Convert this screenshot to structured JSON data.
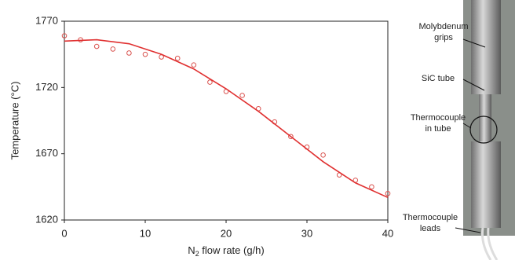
{
  "chart_data": {
    "type": "scatter",
    "xlabel": {
      "main": "N",
      "sub": "2",
      "rest": " flow rate (g/h)"
    },
    "ylabel": "Temperature (°C)",
    "xlim": [
      0,
      40
    ],
    "xticks": [
      0,
      10,
      20,
      30,
      40
    ],
    "ylim": [
      1620,
      1770
    ],
    "yticks": [
      1620,
      1670,
      1720,
      1770
    ],
    "series": [
      {
        "style": "markers",
        "color": "#d9534f",
        "x": [
          0,
          2,
          4,
          6,
          8,
          10,
          12,
          14,
          16,
          18,
          20,
          22,
          24,
          26,
          28,
          30,
          32,
          34,
          36,
          38,
          40
        ],
        "values": [
          1759,
          1756,
          1751,
          1749,
          1746,
          1745,
          1743,
          1742,
          1737,
          1724,
          1717,
          1714,
          1704,
          1694,
          1683,
          1675,
          1669,
          1654,
          1650,
          1645,
          1640
        ]
      },
      {
        "style": "line",
        "color": "#e03030",
        "x": [
          0,
          4,
          8,
          12,
          16,
          20,
          24,
          28,
          32,
          36,
          40
        ],
        "values": [
          1755,
          1756,
          1753,
          1745,
          1734,
          1719,
          1702,
          1683,
          1664,
          1648,
          1637
        ]
      }
    ]
  },
  "photo": {
    "labels": [
      [
        "Molybdenum",
        "grips"
      ],
      [
        "SiC tube"
      ],
      [
        "Thermocouple",
        "in tube"
      ],
      [
        "Thermocouple",
        "leads"
      ]
    ]
  }
}
